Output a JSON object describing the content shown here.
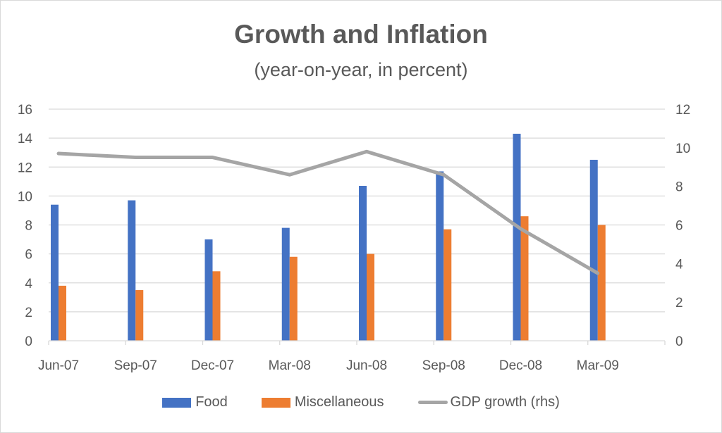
{
  "chart_data": {
    "type": "bar",
    "title": "Growth and Inflation",
    "subtitle": "(year-on-year, in percent)",
    "xlabel": "",
    "ylabel": "",
    "categories": [
      "Jun-07",
      "Sep-07",
      "Dec-07",
      "Mar-08",
      "Jun-08",
      "Sep-08",
      "Dec-08",
      "Mar-09"
    ],
    "series": [
      {
        "name": "Food",
        "type": "bar",
        "axis": "left",
        "color": "#4472c4",
        "values": [
          9.4,
          9.7,
          7.0,
          7.8,
          10.7,
          11.7,
          14.3,
          12.5
        ]
      },
      {
        "name": "Miscellaneous",
        "type": "bar",
        "axis": "left",
        "color": "#ed7d31",
        "values": [
          3.8,
          3.5,
          4.8,
          5.8,
          6.0,
          7.7,
          8.6,
          8.0
        ]
      },
      {
        "name": "GDP growth (rhs)",
        "type": "line",
        "axis": "right",
        "color": "#a5a5a5",
        "values": [
          9.7,
          9.5,
          9.5,
          8.6,
          9.8,
          8.6,
          5.8,
          3.5
        ]
      }
    ],
    "ylim": [
      0,
      16
    ],
    "yticks": [
      "0",
      "2",
      "4",
      "6",
      "8",
      "10",
      "12",
      "14",
      "16"
    ],
    "y2lim": [
      0,
      12
    ],
    "y2ticks": [
      "0",
      "2",
      "4",
      "6",
      "8",
      "10",
      "12"
    ],
    "grid": true,
    "legend_position": "bottom"
  }
}
